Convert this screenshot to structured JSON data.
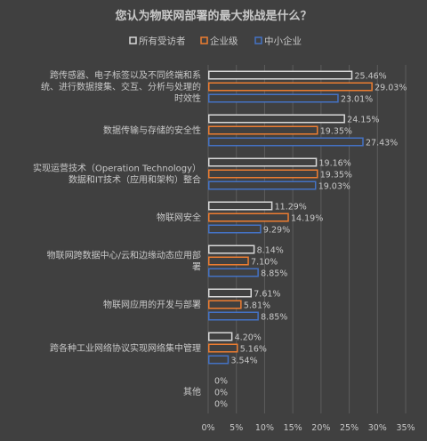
{
  "chart_data": {
    "type": "bar",
    "orientation": "horizontal",
    "title": "您认为物联网部署的最大挑战是什么？",
    "legend_position": "top",
    "colors": {
      "background": "#404040",
      "text": "#c8c8c8",
      "grid": "#5c5c5c",
      "series": [
        "#d9d9d9",
        "#ed7d31",
        "#4472c4"
      ]
    },
    "categories": [
      [
        "跨传感器、电子标签以及不同终端和系",
        "统、进行数据搜集、交互、分析与处理的",
        "时效性"
      ],
      [
        "数据传输与存储的安全性"
      ],
      [
        "实现运营技术（Operation Technology）",
        "数据和IT技术（应用和架构）整合"
      ],
      [
        "物联网安全"
      ],
      [
        "物联网跨数据中心/云和边缘动态应用部",
        "署"
      ],
      [
        "物联网应用的开发与部署"
      ],
      [
        "跨各种工业网络协议实现网络集中管理"
      ],
      [
        "其他"
      ]
    ],
    "series": [
      {
        "name": "所有受访者",
        "values": [
          25.46,
          24.15,
          19.16,
          11.29,
          8.14,
          7.61,
          4.2,
          0
        ],
        "labels": [
          "25.46%",
          "24.15%",
          "19.16%",
          "11.29%",
          "8.14%",
          "7.61%",
          "4.20%",
          "0%"
        ]
      },
      {
        "name": "企业级",
        "values": [
          29.03,
          19.35,
          19.35,
          14.19,
          7.1,
          5.81,
          5.16,
          0
        ],
        "labels": [
          "29.03%",
          "19.35%",
          "19.35%",
          "14.19%",
          "7.10%",
          "5.81%",
          "5.16%",
          "0%"
        ]
      },
      {
        "name": "中小企业",
        "values": [
          23.01,
          27.43,
          19.03,
          9.29,
          8.85,
          8.85,
          3.54,
          0
        ],
        "labels": [
          "23.01%",
          "27.43%",
          "19.03%",
          "9.29%",
          "8.85%",
          "8.85%",
          "3.54%",
          "0%"
        ]
      }
    ],
    "xlim": [
      0,
      35
    ],
    "xticks": [
      "0%",
      "5%",
      "10%",
      "15%",
      "20%",
      "25%",
      "30%",
      "35%"
    ],
    "grid": true
  }
}
